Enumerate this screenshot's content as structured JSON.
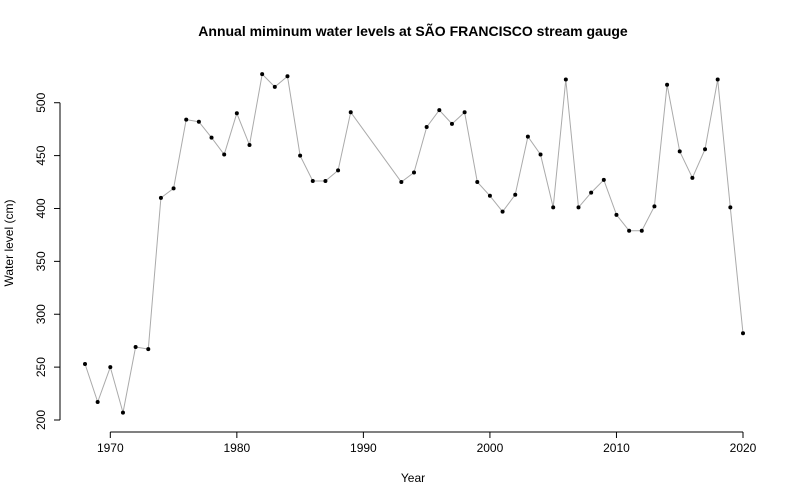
{
  "chart_data": {
    "type": "line",
    "title": "Annual miminum water levels at SÃO FRANCISCO stream gauge",
    "xlabel": "Year",
    "ylabel": "Water level (cm)",
    "xlim": [
      1968,
      2020
    ],
    "ylim": [
      200,
      530
    ],
    "x_ticks": [
      1970,
      1980,
      1990,
      2000,
      2010,
      2020
    ],
    "y_ticks": [
      200,
      250,
      300,
      350,
      400,
      450,
      500
    ],
    "grid": false,
    "legend": "none",
    "line_color": "#aaaaaa",
    "point_color": "#000000",
    "series": [
      {
        "x": [
          1968,
          1969,
          1970,
          1971,
          1972,
          1973,
          1974,
          1975,
          1976,
          1977,
          1978,
          1979,
          1980,
          1981,
          1982,
          1983,
          1984,
          1985,
          1986,
          1987,
          1988,
          1989,
          1993,
          1994,
          1995,
          1996,
          1997,
          1998,
          1999,
          2000,
          2001,
          2002,
          2003,
          2004,
          2005,
          2006,
          2007,
          2008,
          2009,
          2010,
          2011,
          2012,
          2013,
          2014,
          2015,
          2016,
          2017,
          2018,
          2019,
          2020
        ],
        "values": [
          253,
          217,
          250,
          207,
          269,
          267,
          410,
          419,
          484,
          482,
          467,
          451,
          490,
          460,
          527,
          515,
          525,
          450,
          426,
          426,
          436,
          491,
          425,
          434,
          477,
          493,
          480,
          491,
          425,
          412,
          397,
          413,
          468,
          451,
          401,
          522,
          401,
          415,
          427,
          394,
          379,
          379,
          402,
          517,
          454,
          429,
          456,
          522,
          401,
          282
        ]
      }
    ]
  }
}
